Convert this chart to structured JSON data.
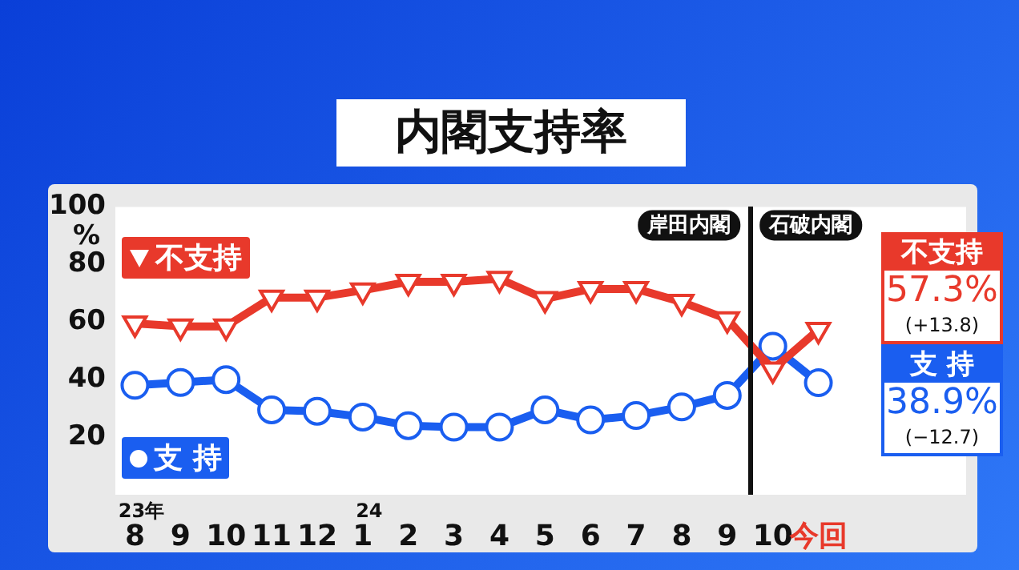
{
  "chart_data": {
    "type": "line",
    "title": "内閣支持率",
    "ylabel": "%",
    "categories": [
      "8",
      "9",
      "10",
      "11",
      "12",
      "1",
      "2",
      "3",
      "4",
      "5",
      "6",
      "7",
      "8",
      "9",
      "10",
      "今回"
    ],
    "series": [
      {
        "name": "不支持",
        "color": "#e8392b",
        "marker": "triangle",
        "values": [
          59.5,
          58.5,
          58.5,
          68.5,
          68.5,
          71,
          74,
          74,
          75,
          68,
          71.5,
          71.5,
          67,
          61,
          43.5,
          57.3
        ]
      },
      {
        "name": "支 持",
        "color": "#1a5ef0",
        "marker": "circle",
        "values": [
          38,
          39,
          40,
          29.5,
          29,
          27,
          24,
          23.5,
          23.5,
          29.5,
          26,
          27.5,
          30.5,
          34.5,
          51.6,
          38.9
        ]
      }
    ],
    "ylim": [
      0,
      100
    ],
    "yticks": [
      20,
      40,
      60,
      80,
      100
    ],
    "grid": false,
    "legend": "left",
    "annotations": [
      "23年",
      "24",
      "岸田内閣",
      "石破内閣",
      "57.3%",
      "(+13.8)",
      "38.9%",
      "(−12.7)"
    ]
  }
}
